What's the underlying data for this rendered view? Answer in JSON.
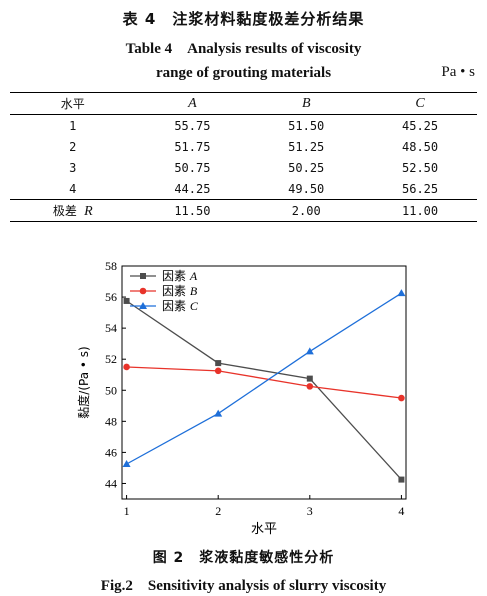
{
  "table": {
    "title_cn": "表 4　注浆材料黏度极差分析结果",
    "title_en_line1": "Table 4　Analysis results of viscosity",
    "title_en_line2": "range of grouting materials",
    "unit": "Pa • s",
    "headers": [
      "水平",
      "A",
      "B",
      "C"
    ],
    "rows": [
      [
        "1",
        "55.75",
        "51.50",
        "45.25"
      ],
      [
        "2",
        "51.75",
        "51.25",
        "48.50"
      ],
      [
        "3",
        "50.75",
        "50.25",
        "52.50"
      ],
      [
        "4",
        "44.25",
        "49.50",
        "56.25"
      ]
    ],
    "range_row": {
      "label_cn": "极差",
      "label_var": "R",
      "values": [
        "11.50",
        "2.00",
        "11.00"
      ]
    }
  },
  "figure": {
    "caption_cn": "图 2　浆液黏度敏感性分析",
    "caption_en": "Fig.2　Sensitivity analysis of slurry viscosity"
  },
  "chart_data": {
    "type": "line",
    "x": [
      1,
      2,
      3,
      4
    ],
    "xlabel": "水平",
    "ylabel": "黏度/(Pa • s)",
    "xlim": [
      0.95,
      4.05
    ],
    "ylim": [
      43,
      58
    ],
    "xticks": [
      1,
      2,
      3,
      4
    ],
    "yticks": [
      44,
      46,
      48,
      50,
      52,
      54,
      56,
      58
    ],
    "legend_position": "top-left",
    "grid": false,
    "series": [
      {
        "name": "因素 A",
        "label_prefix": "因素",
        "label_var": "A",
        "values": [
          55.75,
          51.75,
          50.75,
          44.25
        ],
        "color": "#4d4d4d",
        "marker": "square"
      },
      {
        "name": "因素 B",
        "label_prefix": "因素",
        "label_var": "B",
        "values": [
          51.5,
          51.25,
          50.25,
          49.5
        ],
        "color": "#e8332a",
        "marker": "circle"
      },
      {
        "name": "因素 C",
        "label_prefix": "因素",
        "label_var": "C",
        "values": [
          45.25,
          48.5,
          52.5,
          56.25
        ],
        "color": "#1e6fd9",
        "marker": "triangle"
      }
    ]
  }
}
